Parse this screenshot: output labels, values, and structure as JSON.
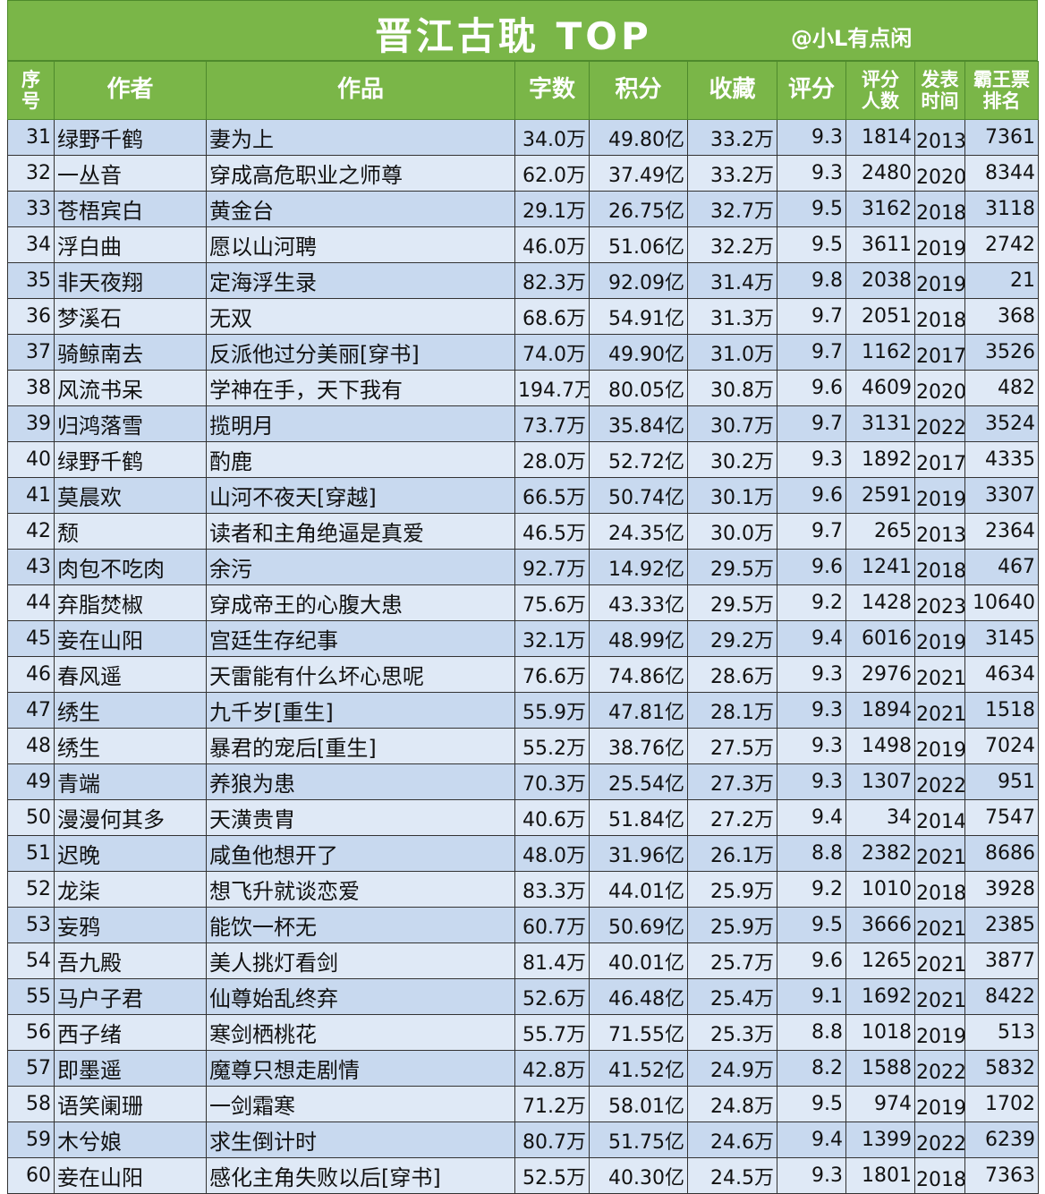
{
  "header": {
    "title": "晋江古耽 TOP",
    "handle": "@小L有点闲"
  },
  "table": {
    "columns": [
      "序号",
      "作者",
      "作品",
      "字数",
      "积分",
      "收藏",
      "评分",
      "评分人数",
      "发表时间",
      "霸王票排名"
    ],
    "rows": [
      [
        "31",
        "绿野千鹤",
        "妻为上",
        "34.0万",
        "49.80亿",
        "33.2万",
        "9.3",
        "1814",
        "2013",
        "7361"
      ],
      [
        "32",
        "一丛音",
        "穿成高危职业之师尊",
        "62.0万",
        "37.49亿",
        "33.2万",
        "9.3",
        "2480",
        "2020",
        "8344"
      ],
      [
        "33",
        "苍梧宾白",
        "黄金台",
        "29.1万",
        "26.75亿",
        "32.7万",
        "9.5",
        "3162",
        "2018",
        "3118"
      ],
      [
        "34",
        "浮白曲",
        "愿以山河聘",
        "46.0万",
        "51.06亿",
        "32.2万",
        "9.5",
        "3611",
        "2019",
        "2742"
      ],
      [
        "35",
        "非天夜翔",
        "定海浮生录",
        "82.3万",
        "92.09亿",
        "31.4万",
        "9.8",
        "2038",
        "2019",
        "21"
      ],
      [
        "36",
        "梦溪石",
        "无双",
        "68.6万",
        "54.91亿",
        "31.3万",
        "9.7",
        "2051",
        "2018",
        "368"
      ],
      [
        "37",
        "骑鲸南去",
        "反派他过分美丽[穿书]",
        "74.0万",
        "49.90亿",
        "31.0万",
        "9.7",
        "1162",
        "2017",
        "3526"
      ],
      [
        "38",
        "风流书呆",
        "学神在手，天下我有",
        "194.7万",
        "80.05亿",
        "30.8万",
        "9.6",
        "4609",
        "2020",
        "482"
      ],
      [
        "39",
        "归鸿落雪",
        "揽明月",
        "73.7万",
        "35.84亿",
        "30.7万",
        "9.7",
        "3131",
        "2022",
        "3524"
      ],
      [
        "40",
        "绿野千鹤",
        "酌鹿",
        "28.0万",
        "52.72亿",
        "30.2万",
        "9.3",
        "1892",
        "2017",
        "4335"
      ],
      [
        "41",
        "莫晨欢",
        "山河不夜天[穿越]",
        "66.5万",
        "50.74亿",
        "30.1万",
        "9.6",
        "2591",
        "2019",
        "3307"
      ],
      [
        "42",
        "颓",
        "读者和主角绝逼是真爱",
        "46.5万",
        "24.35亿",
        "30.0万",
        "9.7",
        "265",
        "2013",
        "2364"
      ],
      [
        "43",
        "肉包不吃肉",
        "余污",
        "92.7万",
        "14.92亿",
        "29.5万",
        "9.6",
        "1241",
        "2018",
        "467"
      ],
      [
        "44",
        "弃脂焚椒",
        "穿成帝王的心腹大患",
        "75.6万",
        "43.33亿",
        "29.5万",
        "9.2",
        "1428",
        "2023",
        "10640"
      ],
      [
        "45",
        "妾在山阳",
        "宫廷生存纪事",
        "32.1万",
        "48.99亿",
        "29.2万",
        "9.4",
        "6016",
        "2019",
        "3145"
      ],
      [
        "46",
        "春风遥",
        "天雷能有什么坏心思呢",
        "76.6万",
        "74.86亿",
        "28.6万",
        "9.3",
        "2976",
        "2021",
        "4634"
      ],
      [
        "47",
        "绣生",
        "九千岁[重生]",
        "55.9万",
        "47.81亿",
        "28.1万",
        "9.3",
        "1894",
        "2021",
        "1518"
      ],
      [
        "48",
        "绣生",
        "暴君的宠后[重生]",
        "55.2万",
        "38.76亿",
        "27.5万",
        "9.3",
        "1498",
        "2019",
        "7024"
      ],
      [
        "49",
        "青端",
        "养狼为患",
        "70.3万",
        "25.54亿",
        "27.3万",
        "9.3",
        "1307",
        "2022",
        "951"
      ],
      [
        "50",
        "漫漫何其多",
        "天潢贵胄",
        "40.6万",
        "51.84亿",
        "27.2万",
        "9.4",
        "34",
        "2014",
        "7547"
      ],
      [
        "51",
        "迟晚",
        "咸鱼他想开了",
        "48.0万",
        "31.96亿",
        "26.1万",
        "8.8",
        "2382",
        "2021",
        "8686"
      ],
      [
        "52",
        "龙柒",
        "想飞升就谈恋爱",
        "83.3万",
        "44.01亿",
        "25.9万",
        "9.2",
        "1010",
        "2018",
        "3928"
      ],
      [
        "53",
        "妄鸦",
        "能饮一杯无",
        "60.7万",
        "50.69亿",
        "25.9万",
        "9.5",
        "3666",
        "2021",
        "2385"
      ],
      [
        "54",
        "吾九殿",
        "美人挑灯看剑",
        "81.4万",
        "40.01亿",
        "25.7万",
        "9.6",
        "1265",
        "2021",
        "3877"
      ],
      [
        "55",
        "马户子君",
        "仙尊始乱终弃",
        "52.6万",
        "46.48亿",
        "25.4万",
        "9.1",
        "1692",
        "2021",
        "8422"
      ],
      [
        "56",
        "西子绪",
        "寒剑栖桃花",
        "55.7万",
        "71.55亿",
        "25.3万",
        "8.8",
        "1018",
        "2019",
        "513"
      ],
      [
        "57",
        "即墨遥",
        "魔尊只想走剧情",
        "42.8万",
        "41.52亿",
        "24.9万",
        "8.2",
        "1588",
        "2022",
        "5832"
      ],
      [
        "58",
        "语笑阑珊",
        "一剑霜寒",
        "71.2万",
        "58.01亿",
        "24.8万",
        "9.5",
        "974",
        "2019",
        "1702"
      ],
      [
        "59",
        "木兮娘",
        "求生倒计时",
        "80.7万",
        "51.75亿",
        "24.6万",
        "9.4",
        "1399",
        "2022",
        "6239"
      ],
      [
        "60",
        "妾在山阳",
        "感化主角失败以后[穿书]",
        "52.5万",
        "40.30亿",
        "24.5万",
        "9.3",
        "1801",
        "2018",
        "7363"
      ]
    ]
  }
}
